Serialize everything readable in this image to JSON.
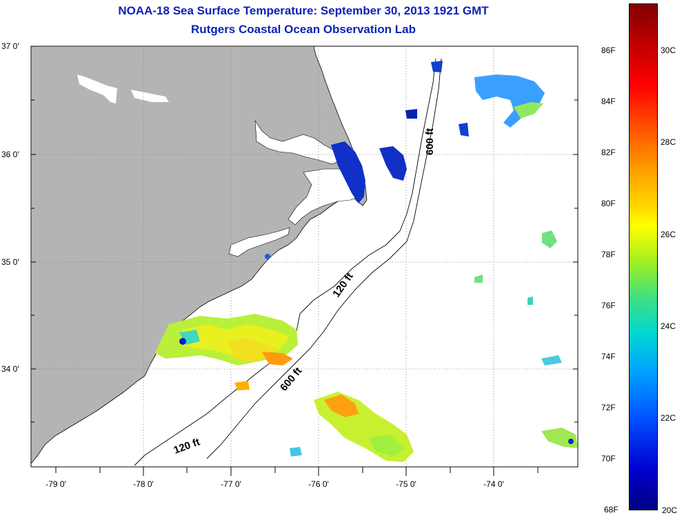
{
  "header": {
    "title_line1": "NOAA-18 Sea Surface Temperature:  September 30, 2013 1921 GMT",
    "title_line2": "Rutgers Coastal Ocean Observation Lab"
  },
  "axes": {
    "lat_labels": [
      "37 0'",
      "36 0'",
      "35 0'",
      "34 0'"
    ],
    "lon_labels": [
      "-79 0'",
      "-78 0'",
      "-77 0'",
      "-76 0'",
      "-75 0'",
      "-74 0'"
    ]
  },
  "contours": {
    "label_600_north": "600 ft",
    "label_120_mid": "120 ft",
    "label_600_south": "600 ft",
    "label_120_south": "120 ft"
  },
  "colorbar": {
    "fahrenheit": [
      "86F",
      "84F",
      "82F",
      "80F",
      "78F",
      "76F",
      "74F",
      "72F",
      "70F",
      "68F"
    ],
    "celsius": [
      "30C",
      "28C",
      "26C",
      "24C",
      "22C",
      "20C"
    ],
    "colors": {
      "max": "#800000",
      "mid": "#ffff00",
      "min": "#000080"
    }
  },
  "colors": {
    "land": "#b4b4b4",
    "title": "#0b22b8",
    "ocean": "#ffffff"
  }
}
